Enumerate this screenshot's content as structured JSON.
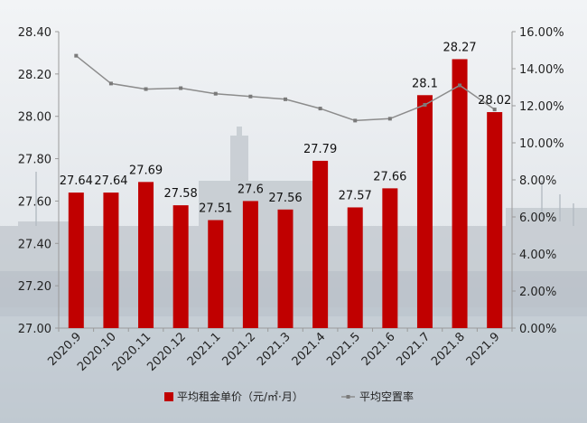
{
  "chart_data": {
    "type": "bar+line",
    "categories": [
      "2020.9",
      "2020.10",
      "2020.11",
      "2020.12",
      "2021.1",
      "2021.2",
      "2021.3",
      "2021.4",
      "2021.5",
      "2021.6",
      "2021.7",
      "2021.8",
      "2021.9"
    ],
    "series": [
      {
        "name": "平均租金单价（元/㎡·月）",
        "type": "bar",
        "axis": "left",
        "color": "#c00000",
        "values": [
          27.64,
          27.64,
          27.69,
          27.58,
          27.51,
          27.6,
          27.56,
          27.79,
          27.57,
          27.66,
          28.1,
          28.27,
          28.02
        ],
        "labels": [
          "27.64",
          "27.64",
          "27.69",
          "27.58",
          "27.51",
          "27.6",
          "27.56",
          "27.79",
          "27.57",
          "27.66",
          "28.1",
          "28.27",
          "28.02"
        ]
      },
      {
        "name": "平均空置率",
        "type": "line",
        "axis": "right",
        "color": "#8c8c8c",
        "values": [
          0.147,
          0.132,
          0.129,
          0.1295,
          0.1265,
          0.125,
          0.1235,
          0.1185,
          0.112,
          0.113,
          0.1205,
          0.131,
          0.118
        ]
      }
    ],
    "y_left": {
      "min": 27.0,
      "max": 28.4,
      "ticks": [
        "27.00",
        "27.20",
        "27.40",
        "27.60",
        "27.80",
        "28.00",
        "28.20",
        "28.40"
      ]
    },
    "y_right": {
      "min": 0,
      "max": 0.16,
      "ticks": [
        "0.00%",
        "2.00%",
        "4.00%",
        "6.00%",
        "8.00%",
        "10.00%",
        "12.00%",
        "14.00%",
        "16.00%"
      ]
    },
    "grid": false,
    "legend_position": "bottom"
  }
}
